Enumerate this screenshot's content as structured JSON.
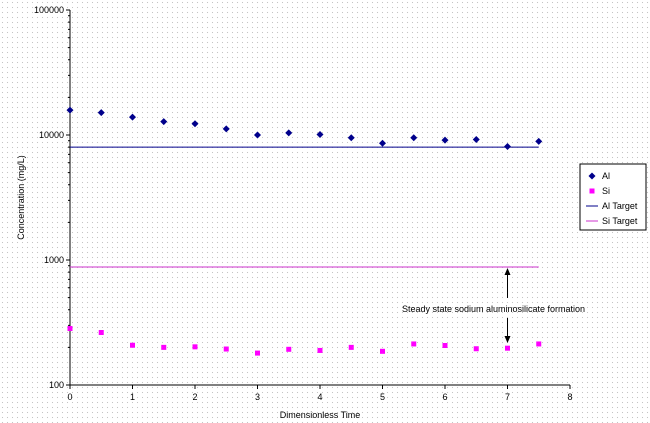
{
  "chart_data": {
    "type": "scatter",
    "title": "",
    "xlabel": "Dimensionless Time",
    "ylabel": "Concentration (mg/L)",
    "xlim": [
      0,
      8
    ],
    "ylim": [
      100,
      100000
    ],
    "y_scale": "log",
    "x_ticks": [
      "0",
      "1",
      "2",
      "3",
      "4",
      "5",
      "6",
      "7",
      "8"
    ],
    "y_ticks": [
      "100",
      "1000",
      "10000",
      "100000"
    ],
    "grid": false,
    "legend_position": "right",
    "series": [
      {
        "name": "Al",
        "kind": "scatter",
        "marker": "diamond",
        "color": "#00008b",
        "x": [
          0,
          0.5,
          1,
          1.5,
          2,
          2.5,
          3,
          3.5,
          4,
          4.5,
          5,
          5.5,
          6,
          6.5,
          7,
          7.5
        ],
        "y": [
          15800,
          15100,
          13900,
          12800,
          12300,
          11200,
          10000,
          10400,
          10100,
          9500,
          8600,
          9500,
          9100,
          9200,
          8100,
          8900
        ]
      },
      {
        "name": "Si",
        "kind": "scatter",
        "marker": "square",
        "color": "#ff00ff",
        "x": [
          0,
          0.5,
          1,
          1.5,
          2,
          2.5,
          3,
          3.5,
          4,
          4.5,
          5,
          5.5,
          6,
          6.5,
          7,
          7.5
        ],
        "y": [
          283,
          263,
          208,
          200,
          202,
          194,
          180,
          193,
          189,
          200,
          186,
          213,
          207,
          195,
          197,
          213
        ]
      },
      {
        "name": "Al Target",
        "kind": "line",
        "color": "#00008b",
        "x": [
          0,
          7.5
        ],
        "y": [
          8000,
          8000
        ]
      },
      {
        "name": "Si Target",
        "kind": "line",
        "color": "#cc33cc",
        "x": [
          0,
          7.5
        ],
        "y": [
          880,
          880
        ]
      }
    ],
    "annotation": {
      "text": "Steady state sodium aluminosilicate formation",
      "x": 7,
      "arrow_up_to": 880,
      "arrow_down_to": 205
    }
  }
}
